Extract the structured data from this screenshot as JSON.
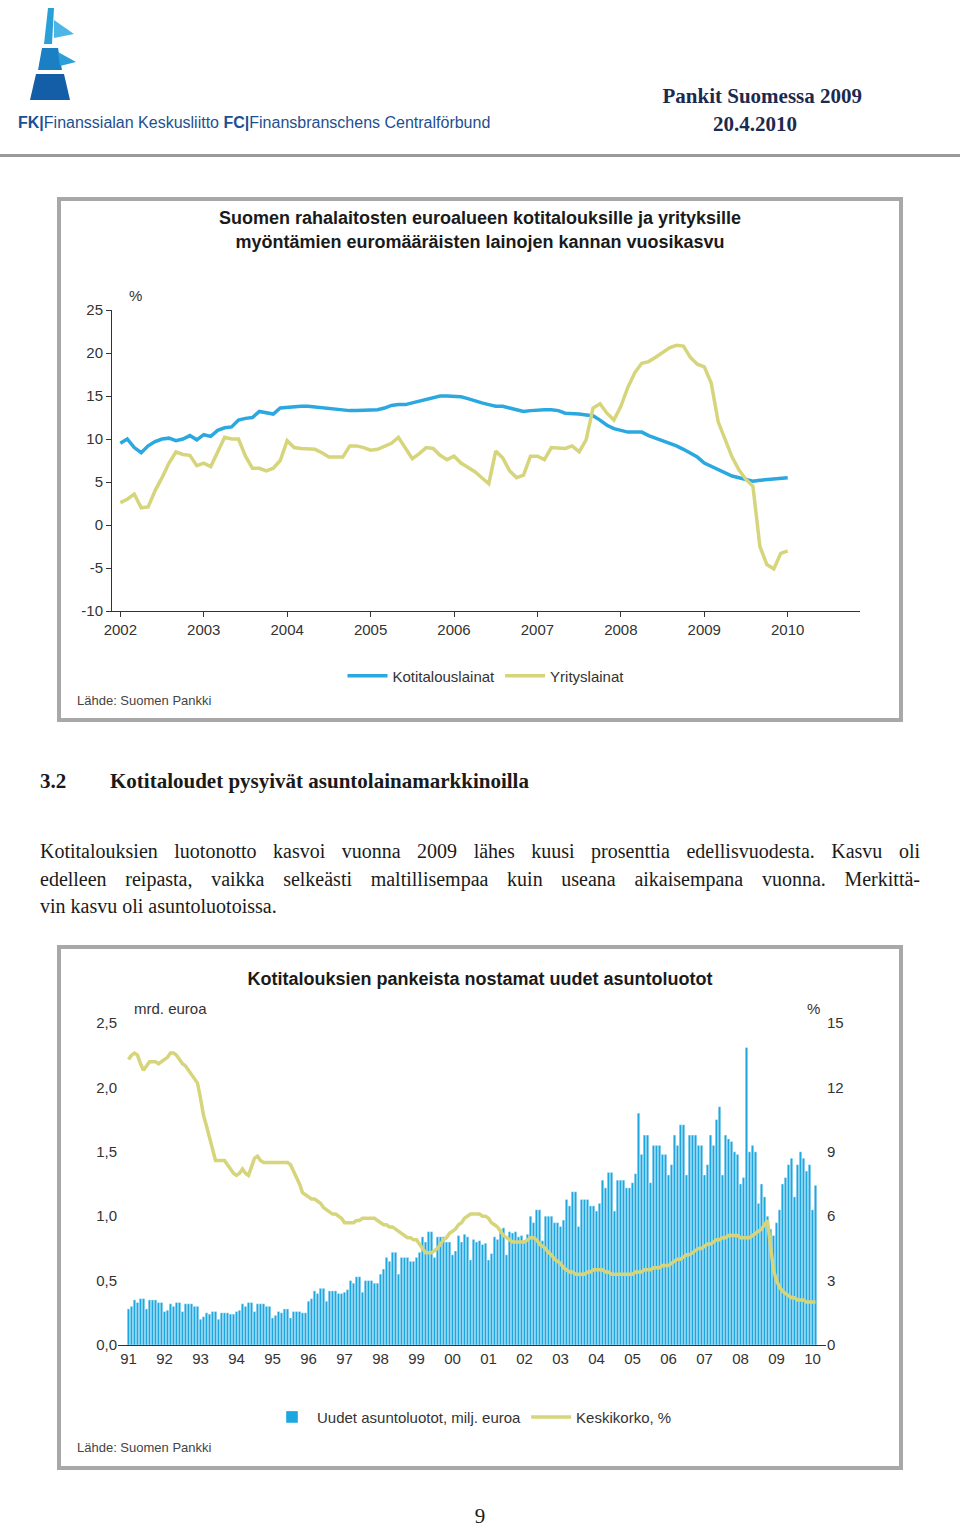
{
  "header": {
    "logo": [
      "FK|Finanssialan Keskusliitto",
      "FC|Finansbranschens Centralförbund"
    ],
    "publication": "Pankit Suomessa 2009",
    "date": "20.4.2010"
  },
  "chart_data": [
    {
      "type": "line",
      "title": [
        "Suomen rahalaitosten euroalueen kotitalouksille ja yrityksille",
        "myöntämien euromääräisten lainojen kannan vuosikasvu"
      ],
      "ylabel": "%",
      "source": "Lähde: Suomen Pankki",
      "categories": [
        "2002",
        null,
        null,
        null,
        null,
        null,
        null,
        null,
        null,
        null,
        null,
        null,
        "2003",
        null,
        null,
        null,
        null,
        null,
        null,
        null,
        null,
        null,
        null,
        null,
        "2004",
        null,
        null,
        null,
        null,
        null,
        null,
        null,
        null,
        null,
        null,
        null,
        "2005",
        null,
        null,
        null,
        null,
        null,
        null,
        null,
        null,
        null,
        null,
        null,
        "2006",
        null,
        null,
        null,
        null,
        null,
        null,
        null,
        null,
        null,
        null,
        null,
        "2007",
        null,
        null,
        null,
        null,
        null,
        null,
        null,
        null,
        null,
        null,
        null,
        "2008",
        null,
        null,
        null,
        null,
        null,
        null,
        null,
        null,
        null,
        null,
        null,
        "2009",
        null,
        null,
        null,
        null,
        null,
        null,
        null,
        null,
        null,
        null,
        null,
        "2010"
      ],
      "series": [
        {
          "name": "Kotitalouslainat",
          "color": "#2ba8e0",
          "values": [
            9.5,
            10.0,
            9.0,
            8.4,
            9.2,
            9.7,
            10.0,
            10.1,
            9.8,
            10.0,
            10.4,
            9.9,
            10.5,
            10.3,
            11.0,
            11.3,
            11.4,
            12.2,
            12.4,
            12.5,
            13.2,
            13.0,
            12.9,
            13.6,
            13.7,
            13.7,
            13.8,
            13.8,
            13.7,
            13.6,
            13.6,
            13.5,
            13.4,
            13.3,
            13.3,
            13.3,
            13.4,
            13.4,
            13.6,
            13.9,
            14.0,
            14.0,
            14.2,
            14.4,
            14.6,
            14.7,
            15.0,
            15.0,
            15.0,
            14.9,
            14.7,
            14.4,
            14.2,
            14.0,
            13.8,
            13.8,
            13.6,
            13.5,
            13.2,
            13.3,
            13.4,
            13.4,
            13.4,
            13.3,
            13.0,
            13.0,
            12.9,
            12.8,
            12.7,
            12.2,
            11.6,
            11.2,
            11.0,
            10.8,
            10.8,
            10.8,
            10.4,
            10.1,
            9.9,
            9.6,
            9.2,
            8.8,
            8.3,
            7.9,
            7.2,
            6.8,
            6.4,
            6.0,
            5.7,
            5.5,
            5.3,
            5.1,
            5.2,
            5.3,
            5.3,
            5.4,
            5.5
          ]
        },
        {
          "name": "Yrityslainat",
          "color": "#d6d57b",
          "values": [
            2.6,
            3.0,
            3.6,
            2.0,
            2.1,
            4.0,
            5.5,
            7.2,
            8.5,
            8.2,
            8.1,
            6.9,
            7.2,
            6.8,
            8.5,
            10.2,
            10.0,
            10.0,
            8.0,
            6.6,
            6.6,
            6.3,
            6.6,
            7.5,
            9.8,
            9.0,
            8.9,
            8.9,
            8.8,
            8.4,
            7.9,
            7.9,
            7.9,
            9.2,
            9.2,
            9.0,
            8.7,
            8.8,
            9.2,
            9.5,
            10.2,
            9.0,
            7.7,
            8.3,
            9.0,
            8.9,
            8.1,
            7.6,
            8.0,
            7.2,
            6.7,
            6.2,
            5.5,
            4.8,
            8.6,
            7.8,
            6.3,
            5.5,
            5.8,
            8.0,
            8.0,
            7.6,
            9.0,
            8.9,
            8.9,
            9.2,
            8.5,
            9.9,
            13.6,
            14.1,
            13.0,
            12.2,
            13.8,
            16.0,
            17.7,
            18.8,
            19.0,
            19.5,
            20.1,
            20.6,
            20.9,
            20.8,
            19.5,
            18.7,
            18.4,
            16.5,
            12.0,
            10.0,
            7.9,
            6.4,
            5.3,
            4.5,
            -2.5,
            -4.6,
            -5.1,
            -3.3,
            -3.0
          ]
        }
      ],
      "ylim": [
        -10,
        25
      ],
      "yticks": [
        -10,
        -5,
        0,
        5,
        10,
        15,
        20,
        25
      ],
      "grid": false,
      "legend": "bottom"
    },
    {
      "type": "bar",
      "title": [
        "Kotitalouksien pankeista nostamat uudet asuntoluotot"
      ],
      "ylabel": "mrd. euroa",
      "y2label": "%",
      "source": "Lähde: Suomen Pankki",
      "categories": [
        "91",
        null,
        null,
        null,
        null,
        null,
        null,
        null,
        null,
        null,
        null,
        null,
        "92",
        null,
        null,
        null,
        null,
        null,
        null,
        null,
        null,
        null,
        null,
        null,
        "93",
        null,
        null,
        null,
        null,
        null,
        null,
        null,
        null,
        null,
        null,
        null,
        "94",
        null,
        null,
        null,
        null,
        null,
        null,
        null,
        null,
        null,
        null,
        null,
        "95",
        null,
        null,
        null,
        null,
        null,
        null,
        null,
        null,
        null,
        null,
        null,
        "96",
        null,
        null,
        null,
        null,
        null,
        null,
        null,
        null,
        null,
        null,
        null,
        "97",
        null,
        null,
        null,
        null,
        null,
        null,
        null,
        null,
        null,
        null,
        null,
        "98",
        null,
        null,
        null,
        null,
        null,
        null,
        null,
        null,
        null,
        null,
        null,
        "99",
        null,
        null,
        null,
        null,
        null,
        null,
        null,
        null,
        null,
        null,
        null,
        "00",
        null,
        null,
        null,
        null,
        null,
        null,
        null,
        null,
        null,
        null,
        null,
        "01",
        null,
        null,
        null,
        null,
        null,
        null,
        null,
        null,
        null,
        null,
        null,
        "02",
        null,
        null,
        null,
        null,
        null,
        null,
        null,
        null,
        null,
        null,
        null,
        "03",
        null,
        null,
        null,
        null,
        null,
        null,
        null,
        null,
        null,
        null,
        null,
        "04",
        null,
        null,
        null,
        null,
        null,
        null,
        null,
        null,
        null,
        null,
        null,
        "05",
        null,
        null,
        null,
        null,
        null,
        null,
        null,
        null,
        null,
        null,
        null,
        "06",
        null,
        null,
        null,
        null,
        null,
        null,
        null,
        null,
        null,
        null,
        null,
        "07",
        null,
        null,
        null,
        null,
        null,
        null,
        null,
        null,
        null,
        null,
        null,
        "08",
        null,
        null,
        null,
        null,
        null,
        null,
        null,
        null,
        null,
        null,
        null,
        "09",
        null,
        null,
        null,
        null,
        null,
        null,
        null,
        null,
        null,
        null,
        null,
        "10",
        null
      ],
      "series": [
        {
          "name": "Uudet asuntoluotot, milj. euroa",
          "type": "bar",
          "color": "#1ca7e0",
          "values": [
            0.28,
            0.3,
            0.35,
            0.33,
            0.36,
            0.36,
            0.28,
            0.35,
            0.35,
            0.35,
            0.33,
            0.33,
            0.26,
            0.27,
            0.32,
            0.3,
            0.33,
            0.33,
            0.26,
            0.32,
            0.32,
            0.32,
            0.3,
            0.3,
            0.2,
            0.22,
            0.25,
            0.24,
            0.26,
            0.26,
            0.2,
            0.25,
            0.25,
            0.25,
            0.24,
            0.24,
            0.26,
            0.27,
            0.32,
            0.3,
            0.33,
            0.33,
            0.26,
            0.32,
            0.32,
            0.32,
            0.3,
            0.3,
            0.21,
            0.23,
            0.26,
            0.25,
            0.28,
            0.28,
            0.21,
            0.26,
            0.26,
            0.26,
            0.25,
            0.25,
            0.34,
            0.36,
            0.42,
            0.4,
            0.44,
            0.44,
            0.34,
            0.42,
            0.42,
            0.42,
            0.4,
            0.4,
            0.41,
            0.43,
            0.5,
            0.48,
            0.53,
            0.53,
            0.41,
            0.5,
            0.5,
            0.5,
            0.48,
            0.48,
            0.55,
            0.59,
            0.68,
            0.65,
            0.72,
            0.72,
            0.55,
            0.68,
            0.68,
            0.68,
            0.65,
            0.65,
            0.68,
            0.72,
            0.84,
            0.8,
            0.88,
            0.88,
            0.68,
            0.84,
            0.84,
            0.84,
            0.8,
            0.8,
            0.7,
            0.73,
            0.85,
            0.8,
            0.86,
            0.84,
            0.66,
            0.82,
            0.8,
            0.81,
            0.78,
            0.79,
            0.66,
            0.71,
            0.84,
            0.82,
            0.9,
            0.91,
            0.7,
            0.88,
            0.87,
            0.88,
            0.84,
            0.85,
            0.81,
            0.86,
            1.0,
            0.95,
            1.05,
            1.05,
            0.81,
            1.0,
            1.0,
            1.0,
            0.95,
            0.95,
            0.92,
            0.97,
            1.13,
            1.08,
            1.19,
            1.19,
            0.92,
            1.13,
            1.13,
            1.13,
            1.08,
            1.08,
            1.04,
            1.1,
            1.28,
            1.22,
            1.34,
            1.34,
            1.04,
            1.28,
            1.28,
            1.28,
            1.22,
            1.22,
            1.26,
            1.33,
            1.8,
            1.48,
            1.63,
            1.63,
            1.26,
            1.55,
            1.55,
            1.55,
            1.48,
            1.48,
            1.32,
            1.4,
            1.63,
            1.55,
            1.71,
            1.71,
            1.32,
            1.63,
            1.63,
            1.63,
            1.55,
            1.55,
            1.32,
            1.4,
            1.63,
            1.55,
            1.75,
            1.85,
            1.32,
            1.63,
            1.6,
            1.58,
            1.5,
            1.48,
            1.25,
            1.3,
            2.31,
            1.5,
            1.55,
            1.5,
            1.1,
            1.25,
            1.15,
            1.0,
            0.9,
            0.85,
            0.95,
            1.05,
            1.25,
            1.3,
            1.4,
            1.45,
            1.15,
            1.4,
            1.5,
            1.45,
            1.35,
            1.4,
            1.05,
            1.24
          ]
        },
        {
          "name": "Keskikorko, %",
          "type": "line",
          "color": "#d6d57b",
          "axis": "y2",
          "values": [
            13.3,
            13.5,
            13.6,
            13.5,
            13.1,
            12.8,
            13.0,
            13.2,
            13.2,
            13.2,
            13.1,
            13.2,
            13.3,
            13.4,
            13.6,
            13.6,
            13.5,
            13.3,
            13.1,
            13.0,
            12.8,
            12.6,
            12.4,
            12.2,
            11.5,
            10.7,
            10.2,
            9.7,
            9.2,
            8.6,
            8.6,
            8.6,
            8.6,
            8.4,
            8.2,
            8.0,
            7.9,
            8.0,
            8.2,
            8.0,
            7.9,
            8.3,
            8.7,
            8.8,
            8.6,
            8.5,
            8.5,
            8.5,
            8.5,
            8.5,
            8.5,
            8.5,
            8.5,
            8.5,
            8.4,
            8.1,
            7.8,
            7.5,
            7.1,
            7.0,
            6.9,
            6.8,
            6.8,
            6.7,
            6.6,
            6.4,
            6.3,
            6.2,
            6.1,
            6.1,
            6.0,
            5.9,
            5.7,
            5.7,
            5.7,
            5.7,
            5.8,
            5.8,
            5.9,
            5.9,
            5.9,
            5.9,
            5.9,
            5.8,
            5.7,
            5.6,
            5.6,
            5.5,
            5.5,
            5.4,
            5.3,
            5.2,
            5.1,
            5.0,
            5.0,
            4.9,
            4.9,
            4.7,
            4.5,
            4.3,
            4.3,
            4.3,
            4.4,
            4.5,
            4.7,
            4.9,
            5.0,
            5.2,
            5.3,
            5.4,
            5.6,
            5.7,
            5.9,
            6.0,
            6.1,
            6.1,
            6.1,
            6.1,
            6.0,
            6.0,
            5.9,
            5.7,
            5.6,
            5.5,
            5.3,
            5.1,
            5.0,
            4.9,
            4.8,
            4.8,
            4.8,
            4.8,
            4.8,
            4.9,
            5.0,
            5.0,
            4.9,
            4.7,
            4.6,
            4.5,
            4.3,
            4.2,
            4.0,
            3.9,
            3.8,
            3.6,
            3.5,
            3.4,
            3.4,
            3.3,
            3.3,
            3.3,
            3.3,
            3.4,
            3.4,
            3.5,
            3.5,
            3.5,
            3.5,
            3.4,
            3.4,
            3.3,
            3.3,
            3.3,
            3.3,
            3.3,
            3.3,
            3.3,
            3.3,
            3.4,
            3.4,
            3.4,
            3.5,
            3.5,
            3.5,
            3.6,
            3.6,
            3.6,
            3.7,
            3.7,
            3.7,
            3.8,
            3.9,
            4.0,
            4.0,
            4.1,
            4.2,
            4.2,
            4.3,
            4.4,
            4.5,
            4.5,
            4.6,
            4.7,
            4.7,
            4.8,
            4.9,
            4.9,
            5.0,
            5.0,
            5.1,
            5.1,
            5.1,
            5.1,
            5.0,
            5.0,
            5.0,
            5.0,
            5.1,
            5.2,
            5.3,
            5.4,
            5.6,
            5.8,
            4.6,
            3.5,
            3.0,
            2.7,
            2.5,
            2.4,
            2.3,
            2.2,
            2.2,
            2.1,
            2.1,
            2.1,
            2.0,
            2.0,
            2.0,
            2.0
          ]
        }
      ],
      "ylim": [
        0,
        2.5
      ],
      "yticks": [
        {
          "value": 0,
          "label": "0,0"
        },
        {
          "value": 0.5,
          "label": "0,5"
        },
        {
          "value": 1,
          "label": "1,0"
        },
        {
          "value": 1.5,
          "label": "1,5"
        },
        {
          "value": 2,
          "label": "2,0"
        },
        {
          "value": 2.5,
          "label": "2,5"
        }
      ],
      "y2lim": [
        0,
        15
      ],
      "y2ticks": [
        0,
        3,
        6,
        9,
        12,
        15
      ],
      "grid": false,
      "legend": "bottom"
    }
  ],
  "section": {
    "number": "3.2",
    "title": "Kotitaloudet pysyivät asuntolainamarkkinoilla",
    "paragraph": [
      "Kotitalouksien luotonotto kasvoi vuonna 2009 lähes kuusi prosenttia edellisvuodesta. Kasvu oli",
      "edelleen reipasta, vaikka selkeästi maltillisempaa kuin useana aikaisempana vuonna. Merkittä-",
      "vin kasvu oli asuntoluotoissa."
    ]
  },
  "page_number": "9"
}
